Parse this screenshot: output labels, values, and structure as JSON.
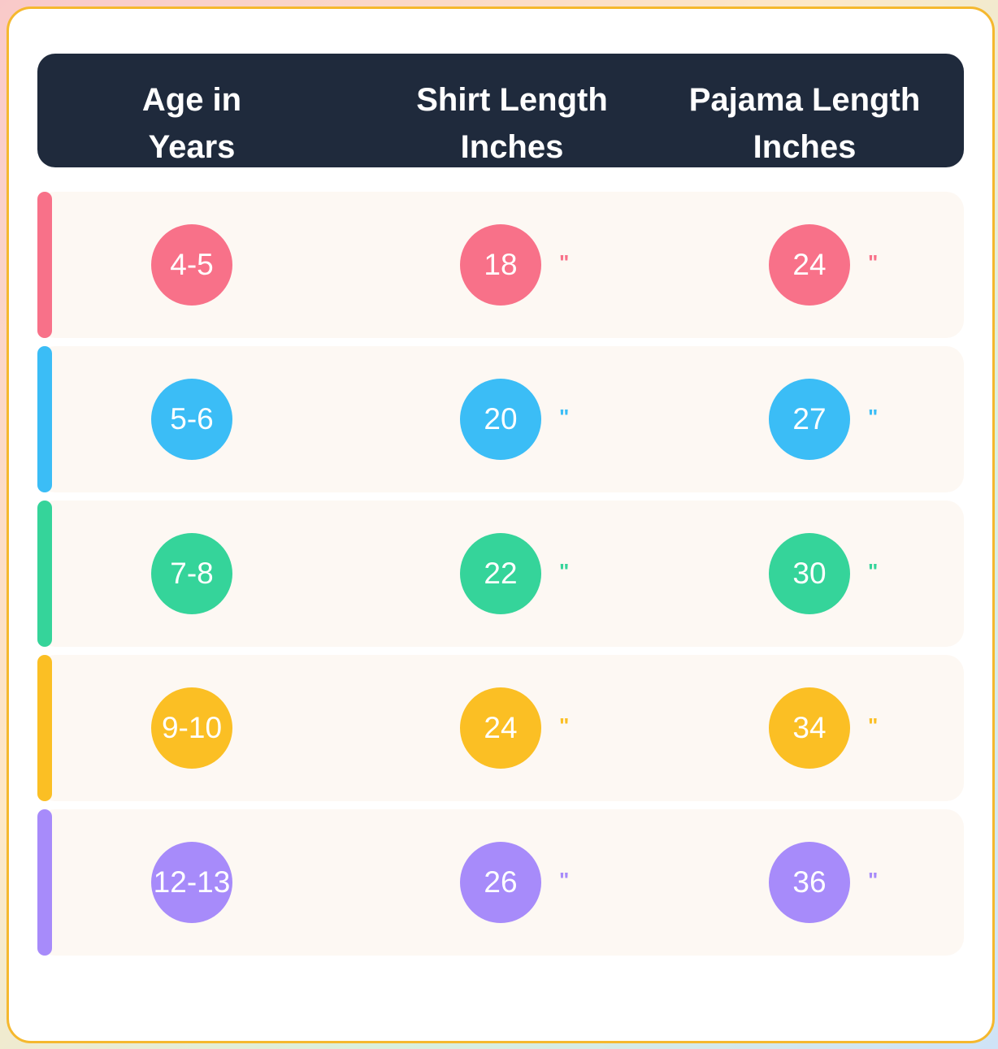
{
  "table": {
    "header": [
      {
        "lines": [
          "Age in",
          "Years"
        ]
      },
      {
        "lines": [
          "Shirt Length",
          "Inches"
        ]
      },
      {
        "lines": [
          "Pajama Length",
          "Inches"
        ]
      }
    ],
    "unit": "\"",
    "rows": [
      {
        "color": "#f87189",
        "cells": [
          "4-5",
          "18",
          "24"
        ]
      },
      {
        "color": "#3bbdf6",
        "cells": [
          "5-6",
          "20",
          "27"
        ]
      },
      {
        "color": "#35d49a",
        "cells": [
          "7-8",
          "22",
          "30"
        ]
      },
      {
        "color": "#fbbf24",
        "cells": [
          "9-10",
          "24",
          "34"
        ]
      },
      {
        "color": "#a78bfa",
        "cells": [
          "12-13",
          "26",
          "36"
        ]
      }
    ]
  }
}
